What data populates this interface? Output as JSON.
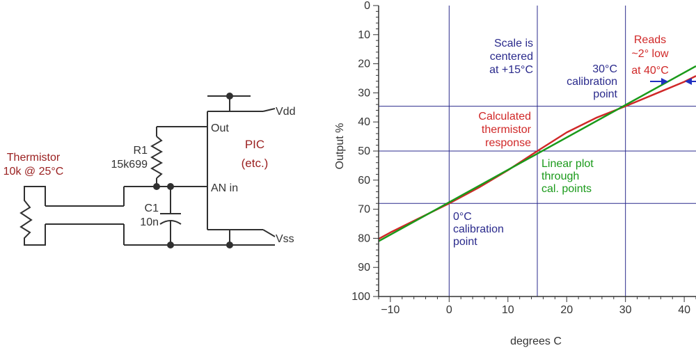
{
  "circuit": {
    "thermistor_label": [
      "Thermistor",
      "10k @ 25°C"
    ],
    "r1_label": [
      "R1",
      "15k699"
    ],
    "c1_label": [
      "C1",
      "10n"
    ],
    "chip_label": [
      "PIC",
      "(etc.)"
    ],
    "pin_out": "Out",
    "pin_an": "AN in",
    "rail_vdd": "Vdd",
    "rail_vss": "Vss"
  },
  "chart_data": {
    "type": "line",
    "xlabel": "degrees C",
    "ylabel": "Output %",
    "xlim": [
      -12,
      42
    ],
    "ylim": [
      0,
      100
    ],
    "y_inverted": true,
    "x_ticks": [
      -10,
      0,
      10,
      20,
      30,
      40
    ],
    "y_ticks": [
      0,
      10,
      20,
      30,
      40,
      50,
      60,
      70,
      80,
      90,
      100
    ],
    "grid_x": [
      0,
      15,
      30
    ],
    "grid_y": [
      34.6,
      50,
      68
    ],
    "series": [
      {
        "color": "#d02828",
        "x": [
          -12,
          -10,
          -5,
          0,
          5,
          10,
          15,
          20,
          25,
          30,
          35,
          40,
          42
        ],
        "y": [
          80.2,
          78.0,
          73.0,
          68.0,
          62.6,
          56.6,
          50.0,
          43.6,
          38.6,
          34.6,
          30.4,
          26.2,
          24.2
        ]
      },
      {
        "color": "#1a9a1a",
        "x": [
          -12,
          42
        ],
        "y": [
          81.0,
          20.8
        ]
      }
    ],
    "annotations": [
      {
        "lines": [
          "Scale is",
          "centered",
          "at +15°C"
        ],
        "color": "#2a2a8c"
      },
      {
        "lines": [
          "Reads",
          "~2° low",
          "at 40°C"
        ],
        "color": "#d02828"
      },
      {
        "lines": [
          "30°C",
          "calibration",
          "point"
        ],
        "color": "#2a2a8c"
      },
      {
        "lines": [
          "Calculated",
          "thermistor",
          "response"
        ],
        "color": "#d02828"
      },
      {
        "lines": [
          "Linear plot",
          "through",
          "cal. points"
        ],
        "color": "#1a9a1a"
      },
      {
        "lines": [
          "0°C",
          "calibration",
          "point"
        ],
        "color": "#2a2a8c"
      }
    ]
  }
}
